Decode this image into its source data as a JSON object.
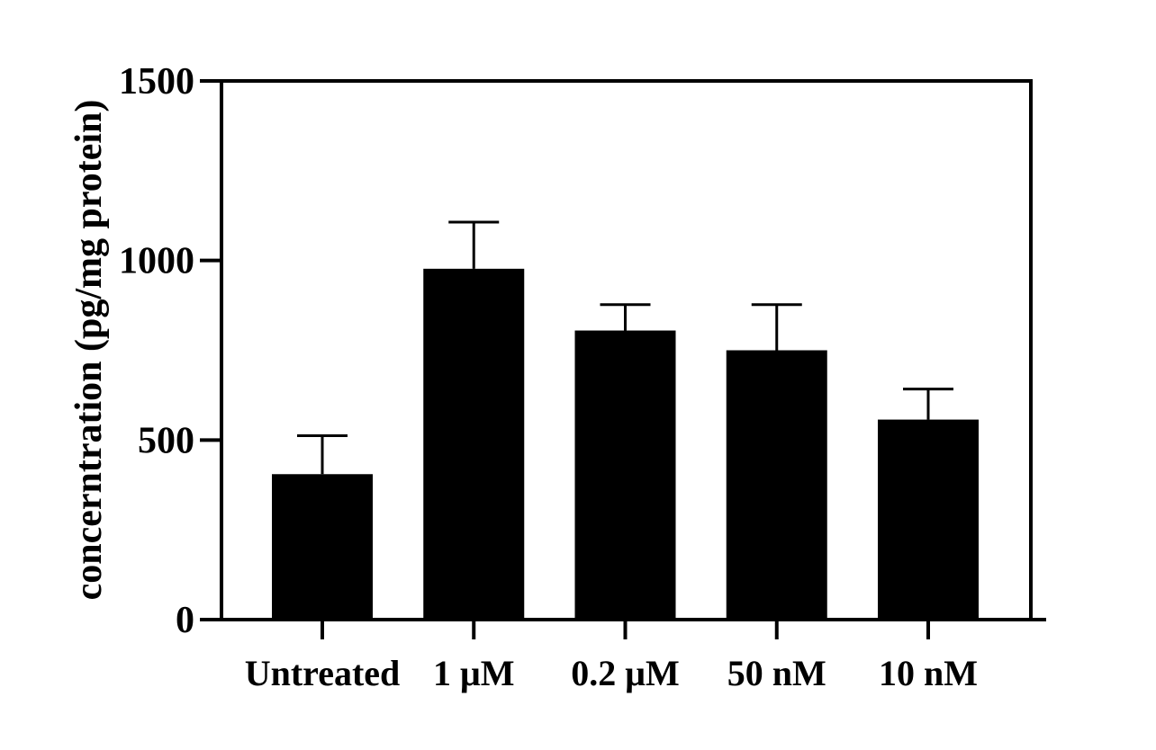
{
  "chart_data": {
    "type": "bar",
    "title": "",
    "xlabel": "",
    "ylabel": "concerntration (pg/mg protein)",
    "ylim": [
      0,
      1500
    ],
    "yticks": [
      0,
      500,
      1000,
      1500
    ],
    "ytick_labels": [
      "0",
      "500",
      "1000",
      "1500"
    ],
    "categories": [
      "Untreated",
      "1 μM",
      "0.2 μM",
      "50 nM",
      "10 nM"
    ],
    "values": [
      405,
      977,
      805,
      750,
      557
    ],
    "error_upper": [
      512,
      1107,
      877,
      877,
      642
    ],
    "bar_color": "#000000",
    "grid": false,
    "legend": "none"
  }
}
